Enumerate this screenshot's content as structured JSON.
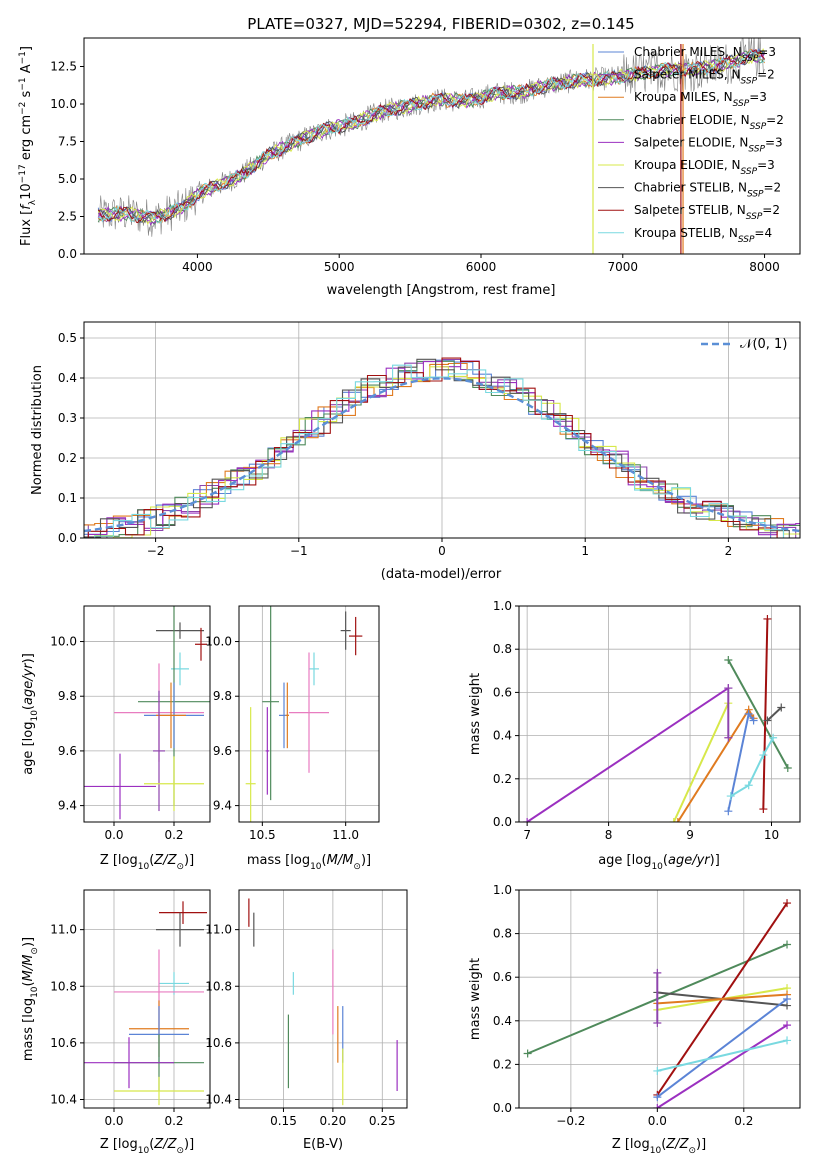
{
  "title": "PLATE=0327, MJD=52294, FIBERID=0302, z=0.145",
  "colors": {
    "Chabrier MILES": "#5b84d6",
    "Salpeter MILES": "#8e44ad",
    "Kroupa MILES": "#e07b20",
    "Chabrier ELODIE": "#4f8a5b",
    "Salpeter ELODIE": "#9b30c0",
    "Kroupa ELODIE": "#d7e84a",
    "Chabrier STELIB": "#555555",
    "Salpeter STELIB": "#a01010",
    "Kroupa STELIB": "#79d9e0",
    "pink": "#e87cc0",
    "gaussian": "#5b8fd6",
    "data": "#808080"
  },
  "chart_data": [
    {
      "type": "line",
      "xlabel": "wavelength [Angstrom, rest frame]",
      "ylabel": "Flux [f_λ 10^-17 erg cm^-2 s^-1 A^-1]",
      "xlim": [
        3200,
        8250
      ],
      "ylim": [
        0,
        14.4
      ],
      "xticks": [
        4000,
        5000,
        6000,
        7000,
        8000
      ],
      "yticks": [
        0.0,
        2.5,
        5.0,
        7.5,
        10.0,
        12.5
      ],
      "legend": "top-right",
      "grid": false,
      "series": [
        {
          "name": "Chabrier MILES, N_SSP=3"
        },
        {
          "name": "Salpeter MILES, N_SSP=2"
        },
        {
          "name": "Kroupa MILES, N_SSP=3"
        },
        {
          "name": "Chabrier ELODIE, N_SSP=2"
        },
        {
          "name": "Salpeter ELODIE, N_SSP=3"
        },
        {
          "name": "Kroupa ELODIE, N_SSP=3"
        },
        {
          "name": "Chabrier STELIB, N_SSP=2"
        },
        {
          "name": "Salpeter STELIB, N_SSP=2"
        },
        {
          "name": "Kroupa STELIB, N_SSP=4"
        }
      ],
      "spectrum_shape": [
        [
          3300,
          2.6
        ],
        [
          3500,
          2.7
        ],
        [
          3700,
          2.4
        ],
        [
          3900,
          3.1
        ],
        [
          4000,
          4.0
        ],
        [
          4100,
          4.4
        ],
        [
          4300,
          5.2
        ],
        [
          4500,
          6.6
        ],
        [
          4700,
          7.5
        ],
        [
          4900,
          8.3
        ],
        [
          5100,
          8.7
        ],
        [
          5300,
          9.5
        ],
        [
          5500,
          9.9
        ],
        [
          5700,
          10.3
        ],
        [
          5900,
          10.2
        ],
        [
          6100,
          10.7
        ],
        [
          6300,
          10.8
        ],
        [
          6500,
          11.3
        ],
        [
          6700,
          11.6
        ],
        [
          6900,
          11.7
        ],
        [
          7100,
          12.0
        ],
        [
          7300,
          12.3
        ],
        [
          7500,
          12.3
        ],
        [
          7700,
          12.6
        ],
        [
          7900,
          13.2
        ]
      ]
    },
    {
      "type": "bar",
      "xlabel": "(data-model)/error",
      "ylabel": "Normed distribution",
      "xlim": [
        -2.5,
        2.5
      ],
      "ylim": [
        0,
        0.54
      ],
      "xticks": [
        -2,
        -1,
        0,
        1,
        2
      ],
      "yticks": [
        0.0,
        0.1,
        0.2,
        0.3,
        0.4,
        0.5
      ],
      "grid": true,
      "legend": "top-right",
      "gaussian_label": "𝒩(0, 1)"
    },
    {
      "type": "scatter",
      "xlabel": "Z [log10(Z/Z☉)]",
      "ylabel": "age [log10(age/yr)]",
      "xlim": [
        -0.1,
        0.32
      ],
      "ylim": [
        9.34,
        10.13
      ],
      "xticks": [
        0.0,
        0.2
      ],
      "yticks": [
        9.4,
        9.6,
        9.8,
        10.0
      ],
      "grid": true,
      "crosses": [
        {
          "c": "Chabrier STELIB",
          "x": 0.22,
          "xerr": 0.08,
          "y": 10.04,
          "yerr": 0.03
        },
        {
          "c": "Salpeter STELIB",
          "x": 0.29,
          "xerr": 0.02,
          "y": 9.99,
          "yerr": 0.06
        },
        {
          "c": "Kroupa STELIB",
          "x": 0.22,
          "xerr": 0.03,
          "y": 9.9,
          "yerr": 0.06
        },
        {
          "c": "Chabrier ELODIE",
          "x": 0.2,
          "xerr": 0.12,
          "y": 9.78,
          "yerr": 0.38
        },
        {
          "c": "pink",
          "x": 0.15,
          "xerr": 0.15,
          "y": 9.74,
          "yerr": 0.18
        },
        {
          "c": "Chabrier MILES",
          "x": 0.2,
          "xerr": 0.1,
          "y": 9.73,
          "yerr": 0.12
        },
        {
          "c": "Kroupa MILES",
          "x": 0.19,
          "xerr": 0.05,
          "y": 9.73,
          "yerr": 0.12
        },
        {
          "c": "Salpeter ELODIE",
          "x": 0.02,
          "xerr": 0.12,
          "y": 9.47,
          "yerr": 0.12
        },
        {
          "c": "Salpeter MILES",
          "x": 0.15,
          "xerr": 0.02,
          "y": 9.6,
          "yerr": 0.22
        },
        {
          "c": "Kroupa ELODIE",
          "x": 0.2,
          "xerr": 0.1,
          "y": 9.48,
          "yerr": 0.1
        }
      ]
    },
    {
      "type": "scatter",
      "xlabel": "mass [log10(M/M☉)]",
      "ylabel": "",
      "xlim": [
        10.36,
        11.2
      ],
      "ylim": [
        9.34,
        10.13
      ],
      "xticks": [
        10.5,
        11.0
      ],
      "yticks": [
        9.4,
        9.6,
        9.8,
        10.0
      ],
      "grid": true,
      "crosses": [
        {
          "c": "Chabrier STELIB",
          "x": 11.0,
          "xerr": 0.03,
          "y": 10.04,
          "yerr": 0.07
        },
        {
          "c": "Salpeter STELIB",
          "x": 11.06,
          "xerr": 0.04,
          "y": 10.02,
          "yerr": 0.07
        },
        {
          "c": "Kroupa STELIB",
          "x": 10.81,
          "xerr": 0.03,
          "y": 9.9,
          "yerr": 0.06
        },
        {
          "c": "Chabrier ELODIE",
          "x": 10.55,
          "xerr": 0.05,
          "y": 9.78,
          "yerr": 0.36
        },
        {
          "c": "pink",
          "x": 10.78,
          "xerr": 0.12,
          "y": 9.74,
          "yerr": 0.22
        },
        {
          "c": "Chabrier MILES",
          "x": 10.63,
          "xerr": 0.03,
          "y": 9.73,
          "yerr": 0.12
        },
        {
          "c": "Kroupa MILES",
          "x": 10.65,
          "xerr": 0.01,
          "y": 9.73,
          "yerr": 0.12
        },
        {
          "c": "Salpeter ELODIE",
          "x": 10.53,
          "xerr": 0.01,
          "y": 9.6,
          "yerr": 0.16
        },
        {
          "c": "Kroupa ELODIE",
          "x": 10.43,
          "xerr": 0.03,
          "y": 9.48,
          "yerr": 0.28
        }
      ]
    },
    {
      "type": "line",
      "xlabel": "age [log10(age/yr)]",
      "ylabel": "mass weight",
      "xlim": [
        6.9,
        10.35
      ],
      "ylim": [
        0,
        1
      ],
      "xticks": [
        7,
        8,
        9,
        10
      ],
      "yticks": [
        0.0,
        0.2,
        0.4,
        0.6,
        0.8,
        1.0
      ],
      "grid": true,
      "series": [
        {
          "c": "Salpeter ELODIE",
          "points": [
            [
              7.0,
              0.0
            ],
            [
              9.47,
              0.62
            ]
          ]
        },
        {
          "c": "Kroupa ELODIE",
          "points": [
            [
              8.8,
              0.0
            ],
            [
              9.47,
              0.55
            ]
          ]
        },
        {
          "c": "Kroupa MILES",
          "points": [
            [
              8.85,
              0.0
            ],
            [
              9.72,
              0.52
            ],
            [
              9.78,
              0.48
            ]
          ]
        },
        {
          "c": "Chabrier MILES",
          "points": [
            [
              9.47,
              0.05
            ],
            [
              9.72,
              0.5
            ],
            [
              9.78,
              0.47
            ]
          ]
        },
        {
          "c": "Salpeter MILES",
          "points": [
            [
              9.47,
              0.39
            ],
            [
              9.47,
              0.62
            ]
          ]
        },
        {
          "c": "Chabrier ELODIE",
          "points": [
            [
              9.47,
              0.75
            ],
            [
              10.2,
              0.25
            ]
          ]
        },
        {
          "c": "Salpeter STELIB",
          "points": [
            [
              9.9,
              0.06
            ],
            [
              9.95,
              0.94
            ]
          ]
        },
        {
          "c": "Chabrier STELIB",
          "points": [
            [
              9.95,
              0.47
            ],
            [
              10.12,
              0.53
            ]
          ]
        },
        {
          "c": "Kroupa STELIB",
          "points": [
            [
              9.5,
              0.12
            ],
            [
              9.72,
              0.17
            ],
            [
              9.9,
              0.31
            ],
            [
              10.02,
              0.39
            ]
          ]
        }
      ]
    },
    {
      "type": "scatter",
      "xlabel": "Z [log10(Z/Z☉)]",
      "ylabel": "mass [log10(M/M☉)]",
      "xlim": [
        -0.1,
        0.32
      ],
      "ylim": [
        10.37,
        11.14
      ],
      "xticks": [
        0.0,
        0.2
      ],
      "yticks": [
        10.4,
        10.6,
        10.8,
        11.0
      ],
      "grid": true,
      "crosses": [
        {
          "c": "Salpeter STELIB",
          "x": 0.23,
          "xerr": 0.08,
          "y": 11.06,
          "yerr": 0.04
        },
        {
          "c": "Chabrier STELIB",
          "x": 0.22,
          "xerr": 0.08,
          "y": 11.0,
          "yerr": 0.06
        },
        {
          "c": "Kroupa STELIB",
          "x": 0.2,
          "xerr": 0.05,
          "y": 10.81,
          "yerr": 0.04
        },
        {
          "c": "pink",
          "x": 0.15,
          "xerr": 0.15,
          "y": 10.78,
          "yerr": 0.15
        },
        {
          "c": "Kroupa MILES",
          "x": 0.15,
          "xerr": 0.1,
          "y": 10.65,
          "yerr": 0.1
        },
        {
          "c": "Chabrier MILES",
          "x": 0.15,
          "xerr": 0.1,
          "y": 10.63,
          "yerr": 0.1
        },
        {
          "c": "Chabrier ELODIE",
          "x": 0.15,
          "xerr": 0.15,
          "y": 10.53,
          "yerr": 0.1
        },
        {
          "c": "Salpeter ELODIE",
          "x": 0.05,
          "xerr": 0.15,
          "y": 10.53,
          "yerr": 0.09
        },
        {
          "c": "Kroupa ELODIE",
          "x": 0.15,
          "xerr": 0.15,
          "y": 10.43,
          "yerr": 0.05
        }
      ]
    },
    {
      "type": "scatter",
      "xlabel": "E(B-V)",
      "ylabel": "",
      "xlim": [
        0.105,
        0.275
      ],
      "ylim": [
        10.37,
        11.14
      ],
      "xticks": [
        0.15,
        0.2,
        0.25
      ],
      "yticks": [
        10.4,
        10.6,
        10.8,
        11.0
      ],
      "grid": true,
      "crosses": [
        {
          "c": "Salpeter STELIB",
          "x": 0.115,
          "xerr": 0,
          "y": 11.06,
          "yerr": 0.05
        },
        {
          "c": "Chabrier STELIB",
          "x": 0.12,
          "xerr": 0,
          "y": 11.0,
          "yerr": 0.06
        },
        {
          "c": "Kroupa STELIB",
          "x": 0.16,
          "xerr": 0,
          "y": 10.81,
          "yerr": 0.04
        },
        {
          "c": "pink",
          "x": 0.2,
          "xerr": 0,
          "y": 10.78,
          "yerr": 0.15
        },
        {
          "c": "Chabrier ELODIE",
          "x": 0.155,
          "xerr": 0,
          "y": 10.57,
          "yerr": 0.13
        },
        {
          "c": "Kroupa MILES",
          "x": 0.205,
          "xerr": 0,
          "y": 10.63,
          "yerr": 0.1
        },
        {
          "c": "Chabrier MILES",
          "x": 0.21,
          "xerr": 0,
          "y": 10.63,
          "yerr": 0.1
        },
        {
          "c": "Kroupa ELODIE",
          "x": 0.21,
          "xerr": 0,
          "y": 10.48,
          "yerr": 0.1
        },
        {
          "c": "Salpeter ELODIE",
          "x": 0.265,
          "xerr": 0,
          "y": 10.52,
          "yerr": 0.09
        }
      ]
    },
    {
      "type": "line",
      "xlabel": "Z [log10(Z/Z☉)]",
      "ylabel": "mass weight",
      "xlim": [
        -0.32,
        0.33
      ],
      "ylim": [
        0,
        1
      ],
      "xticks": [
        -0.2,
        0.0,
        0.2
      ],
      "yticks": [
        0.0,
        0.2,
        0.4,
        0.6,
        0.8,
        1.0
      ],
      "grid": true,
      "series": [
        {
          "c": "Chabrier ELODIE",
          "points": [
            [
              -0.3,
              0.25
            ],
            [
              0.3,
              0.75
            ]
          ]
        },
        {
          "c": "Salpeter STELIB",
          "points": [
            [
              0.0,
              0.06
            ],
            [
              0.3,
              0.94
            ]
          ]
        },
        {
          "c": "Chabrier STELIB",
          "points": [
            [
              0.0,
              0.53
            ],
            [
              0.3,
              0.47
            ]
          ]
        },
        {
          "c": "Kroupa ELODIE",
          "points": [
            [
              0.0,
              0.45
            ],
            [
              0.3,
              0.55
            ]
          ]
        },
        {
          "c": "Kroupa MILES",
          "points": [
            [
              0.0,
              0.48
            ],
            [
              0.3,
              0.52
            ]
          ]
        },
        {
          "c": "Chabrier MILES",
          "points": [
            [
              0.0,
              0.05
            ],
            [
              0.3,
              0.5
            ]
          ]
        },
        {
          "c": "Salpeter ELODIE",
          "points": [
            [
              0.0,
              0.0
            ],
            [
              0.3,
              0.38
            ]
          ]
        },
        {
          "c": "Kroupa STELIB",
          "points": [
            [
              0.0,
              0.17
            ],
            [
              0.3,
              0.31
            ]
          ]
        },
        {
          "c": "Salpeter MILES",
          "points": [
            [
              0.0,
              0.39
            ],
            [
              0.0,
              0.62
            ]
          ]
        }
      ]
    }
  ]
}
